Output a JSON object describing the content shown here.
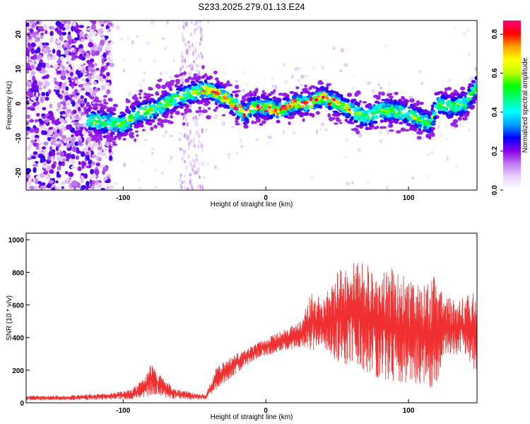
{
  "page": {
    "title": "S233.2025.279.01.13.E24"
  },
  "chart_data": [
    {
      "type": "heatmap",
      "title": "S233.2025.279.01.13.E24",
      "xlabel": "Height of straight line (km)",
      "ylabel": "Frequency (Hz)",
      "xlim": [
        -168,
        148
      ],
      "ylim": [
        -25,
        24
      ],
      "x_ticks": [
        -100,
        0,
        100
      ],
      "y_ticks": [
        -20,
        -10,
        0,
        10,
        20
      ],
      "colorbar": {
        "label": "Normalized spectral amplitude",
        "range": [
          0.0,
          0.87
        ],
        "ticks": [
          0.0,
          0.2,
          0.4,
          0.6,
          0.8
        ],
        "colors": [
          "#ffffff",
          "#e9d4ff",
          "#c07cf0",
          "#8a00e6",
          "#0000ff",
          "#00a0ff",
          "#00ffff",
          "#00ff80",
          "#00ff00",
          "#c0ff00",
          "#ffff00",
          "#ffa000",
          "#ff0000",
          "#ff0080"
        ]
      },
      "ridge_center_freq": [
        [
          -120,
          -5
        ],
        [
          -100,
          -6
        ],
        [
          -90,
          -3
        ],
        [
          -80,
          -2
        ],
        [
          -60,
          2
        ],
        [
          -45,
          4
        ],
        [
          -40,
          4
        ],
        [
          -30,
          2
        ],
        [
          -20,
          -1
        ],
        [
          -15,
          -3
        ],
        [
          -10,
          -1
        ],
        [
          0,
          -1
        ],
        [
          10,
          -2
        ],
        [
          20,
          0
        ],
        [
          30,
          0
        ],
        [
          40,
          2
        ],
        [
          50,
          0
        ],
        [
          60,
          -2
        ],
        [
          70,
          -4
        ],
        [
          80,
          -2
        ],
        [
          90,
          -2
        ],
        [
          100,
          -3
        ],
        [
          110,
          -5
        ],
        [
          115,
          -6
        ],
        [
          120,
          0
        ],
        [
          130,
          -1
        ],
        [
          140,
          0
        ],
        [
          148,
          5
        ]
      ],
      "grid": false,
      "legend": "none"
    },
    {
      "type": "line",
      "xlabel": "Height of straight line (km)",
      "ylabel": "SNR (10 * v/v)",
      "xlim": [
        -168,
        148
      ],
      "ylim": [
        0,
        1040
      ],
      "x_ticks": [
        -100,
        0,
        100
      ],
      "y_ticks": [
        0,
        200,
        400,
        600,
        800,
        1000
      ],
      "series": [
        {
          "color": "#f03030",
          "envelope": [
            [
              -168,
              15,
              45
            ],
            [
              -140,
              15,
              45
            ],
            [
              -110,
              20,
              60
            ],
            [
              -95,
              20,
              80
            ],
            [
              -85,
              30,
              150
            ],
            [
              -80,
              50,
              250
            ],
            [
              -75,
              40,
              180
            ],
            [
              -65,
              25,
              90
            ],
            [
              -50,
              20,
              60
            ],
            [
              -42,
              20,
              50
            ],
            [
              -35,
              80,
              220
            ],
            [
              -25,
              150,
              280
            ],
            [
              -15,
              220,
              330
            ],
            [
              -5,
              280,
              370
            ],
            [
              5,
              300,
              420
            ],
            [
              15,
              320,
              460
            ],
            [
              25,
              340,
              500
            ],
            [
              32,
              320,
              700
            ],
            [
              40,
              340,
              620
            ],
            [
              50,
              250,
              820
            ],
            [
              60,
              220,
              860
            ],
            [
              70,
              180,
              860
            ],
            [
              80,
              150,
              850
            ],
            [
              90,
              130,
              820
            ],
            [
              100,
              120,
              770
            ],
            [
              110,
              100,
              720
            ],
            [
              118,
              80,
              780
            ],
            [
              125,
              280,
              650
            ],
            [
              135,
              300,
              640
            ],
            [
              140,
              280,
              650
            ],
            [
              148,
              180,
              700
            ]
          ]
        }
      ],
      "grid": false,
      "legend": "none"
    }
  ]
}
